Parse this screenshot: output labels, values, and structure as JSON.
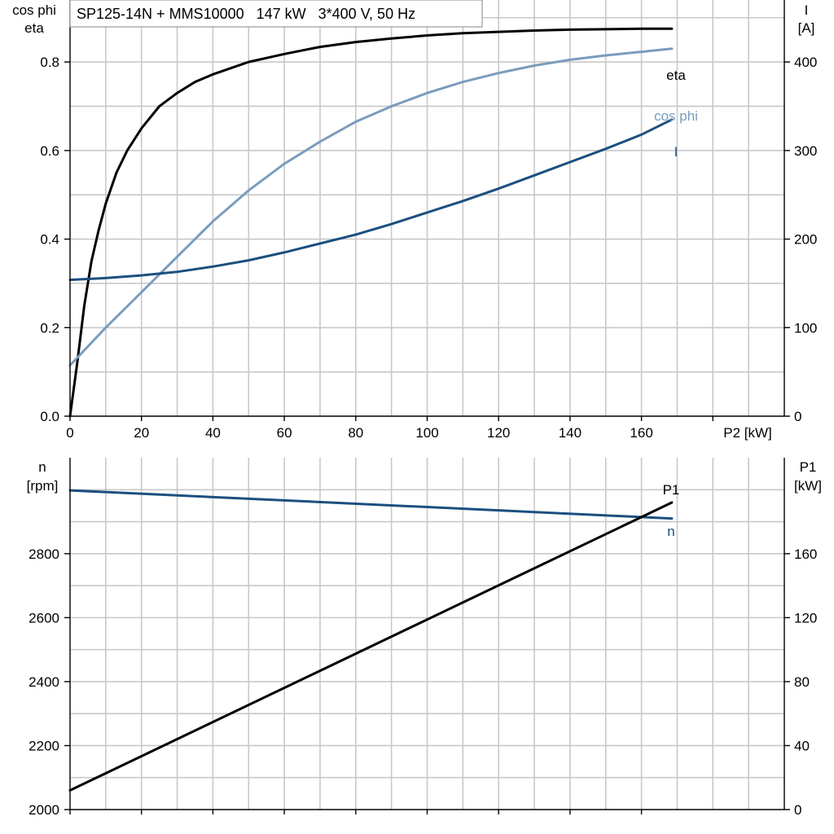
{
  "header": {
    "title": "SP125-14N + MMS10000   147 kW   3*400 V, 50 Hz"
  },
  "chart_data": [
    {
      "type": "line",
      "name": "top",
      "xlabel": "P2 [kW]",
      "xlim": [
        0,
        200
      ],
      "xticks": [
        0,
        20,
        40,
        60,
        80,
        100,
        120,
        140,
        160
      ],
      "ylabel_left": [
        "cos phi",
        "eta"
      ],
      "ylim_left": [
        0,
        0.94
      ],
      "yticks_left": [
        0.0,
        0.2,
        0.4,
        0.6,
        0.8
      ],
      "ytick_labels_left": [
        "0.0",
        "0.2",
        "0.4",
        "0.6",
        "0.8"
      ],
      "ylabel_right": [
        "I",
        "[A]"
      ],
      "ylim_right": [
        0,
        470
      ],
      "yticks_right": [
        0,
        100,
        200,
        300,
        400
      ],
      "grid": true,
      "series": [
        {
          "name": "eta",
          "axis": "left",
          "color": "#000000",
          "x": [
            0,
            2,
            4,
            6,
            8,
            10,
            13,
            16,
            20,
            25,
            30,
            35,
            40,
            50,
            60,
            70,
            80,
            90,
            100,
            110,
            120,
            130,
            140,
            150,
            160,
            168.5
          ],
          "y": [
            0.0,
            0.12,
            0.25,
            0.35,
            0.42,
            0.48,
            0.55,
            0.6,
            0.65,
            0.7,
            0.73,
            0.755,
            0.772,
            0.8,
            0.818,
            0.834,
            0.845,
            0.853,
            0.86,
            0.865,
            0.868,
            0.871,
            0.873,
            0.874,
            0.875,
            0.875
          ]
        },
        {
          "name": "cos phi",
          "axis": "left",
          "color": "#7a9cbd",
          "x": [
            0,
            10,
            20,
            30,
            40,
            50,
            60,
            70,
            80,
            90,
            100,
            110,
            120,
            130,
            140,
            150,
            160,
            168.5
          ],
          "y": [
            0.115,
            0.2,
            0.28,
            0.36,
            0.44,
            0.51,
            0.57,
            0.62,
            0.665,
            0.7,
            0.73,
            0.755,
            0.775,
            0.792,
            0.805,
            0.815,
            0.823,
            0.83
          ]
        },
        {
          "name": "I",
          "axis": "right",
          "color": "#1b4f7f",
          "x": [
            0,
            10,
            20,
            30,
            40,
            50,
            60,
            70,
            80,
            90,
            100,
            110,
            120,
            130,
            140,
            150,
            160,
            168.5
          ],
          "y": [
            154,
            156,
            159,
            163,
            169,
            176,
            185,
            195,
            205,
            217,
            230,
            243,
            257,
            272,
            287,
            302,
            318,
            335
          ]
        }
      ]
    },
    {
      "type": "line",
      "name": "bottom",
      "xlim": [
        0,
        200
      ],
      "xticks": [
        0,
        20,
        40,
        60,
        80,
        100,
        120,
        140,
        160
      ],
      "ylabel_left": [
        "n",
        "[rpm]"
      ],
      "ylim_left": [
        2000,
        3100
      ],
      "yticks_left": [
        2000,
        2200,
        2400,
        2600,
        2800
      ],
      "ylabel_right": [
        "P1",
        "[kW]"
      ],
      "ylim_right": [
        0,
        220
      ],
      "yticks_right": [
        0,
        40,
        80,
        120,
        160
      ],
      "grid": true,
      "series": [
        {
          "name": "n",
          "axis": "left",
          "color": "#1b4f7f",
          "x": [
            0,
            168.5
          ],
          "y": [
            2998,
            2910
          ]
        },
        {
          "name": "P1",
          "axis": "right",
          "color": "#000000",
          "x": [
            0,
            168.5
          ],
          "y": [
            12,
            192
          ]
        }
      ]
    }
  ]
}
